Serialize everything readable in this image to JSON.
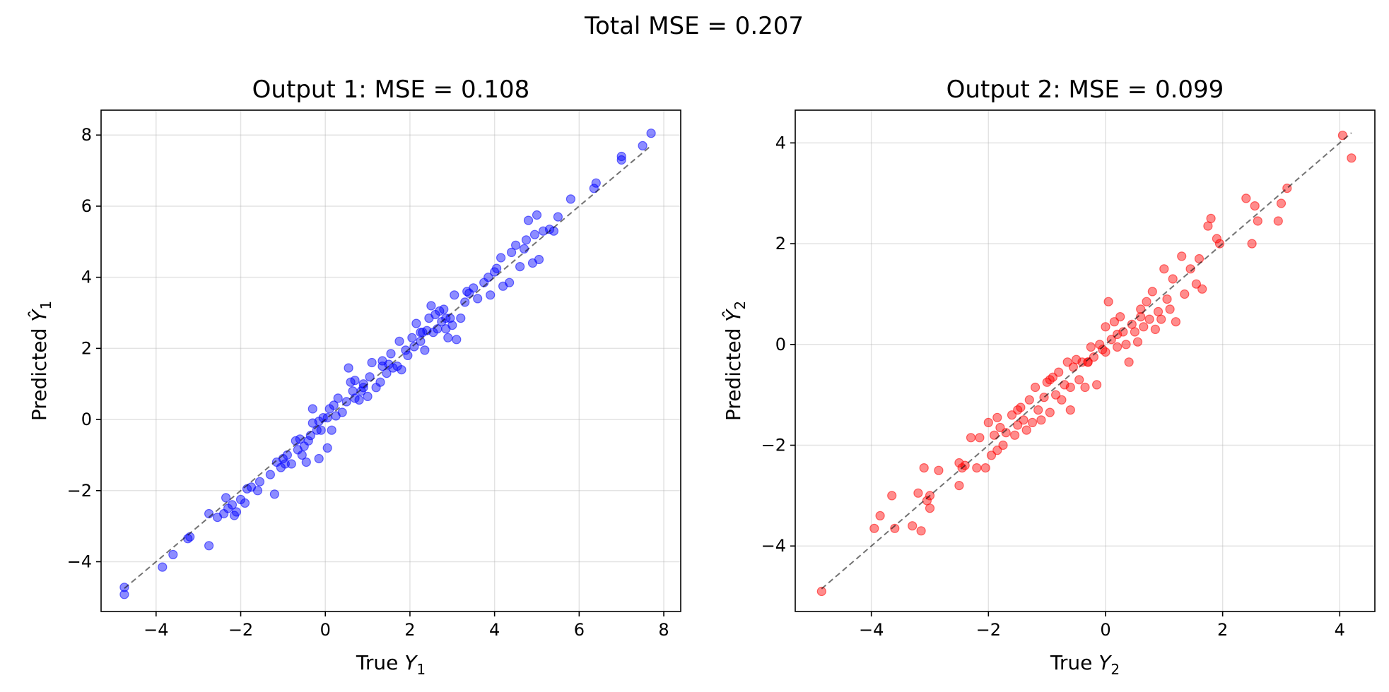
{
  "figure": {
    "suptitle": "Total MSE = 0.207"
  },
  "chart_data": [
    {
      "type": "scatter",
      "title": "Output 1: MSE = 0.108",
      "xlabel": {
        "prefix": "True ",
        "var": "Y",
        "sub": "1"
      },
      "ylabel": {
        "prefix": "Predicted ",
        "var": "Ŷ",
        "sub": "1"
      },
      "xlim": [
        -5.3,
        8.4
      ],
      "ylim": [
        -5.4,
        8.7
      ],
      "xticks": [
        -4,
        -2,
        0,
        2,
        4,
        6,
        8
      ],
      "yticks": [
        -4,
        -2,
        0,
        2,
        4,
        6,
        8
      ],
      "grid": true,
      "color": "#0000ff",
      "reference_line": [
        -4.75,
        7.7
      ],
      "points": [
        [
          -4.75,
          -4.72
        ],
        [
          -4.75,
          -4.92
        ],
        [
          -3.85,
          -4.15
        ],
        [
          -3.6,
          -3.8
        ],
        [
          -3.25,
          -3.35
        ],
        [
          -3.2,
          -3.3
        ],
        [
          -2.75,
          -3.55
        ],
        [
          -2.75,
          -2.65
        ],
        [
          -2.55,
          -2.75
        ],
        [
          -2.4,
          -2.65
        ],
        [
          -2.35,
          -2.2
        ],
        [
          -2.3,
          -2.5
        ],
        [
          -2.2,
          -2.4
        ],
        [
          -2.15,
          -2.7
        ],
        [
          -2.1,
          -2.6
        ],
        [
          -2.0,
          -2.25
        ],
        [
          -1.9,
          -2.35
        ],
        [
          -1.85,
          -1.95
        ],
        [
          -1.75,
          -1.9
        ],
        [
          -1.6,
          -2.0
        ],
        [
          -1.55,
          -1.75
        ],
        [
          -1.3,
          -1.55
        ],
        [
          -1.2,
          -2.1
        ],
        [
          -1.15,
          -1.2
        ],
        [
          -1.05,
          -1.35
        ],
        [
          -1.0,
          -1.1
        ],
        [
          -0.95,
          -1.25
        ],
        [
          -0.9,
          -1.0
        ],
        [
          -0.8,
          -1.25
        ],
        [
          -0.7,
          -0.6
        ],
        [
          -0.65,
          -0.85
        ],
        [
          -0.6,
          -0.55
        ],
        [
          -0.55,
          -1.0
        ],
        [
          -0.5,
          -0.75
        ],
        [
          -0.45,
          -1.2
        ],
        [
          -0.4,
          -0.6
        ],
        [
          -0.35,
          -0.45
        ],
        [
          -0.3,
          -0.1
        ],
        [
          -0.3,
          0.3
        ],
        [
          -0.2,
          -0.3
        ],
        [
          -0.15,
          -0.05
        ],
        [
          -0.1,
          -0.3
        ],
        [
          -0.15,
          -1.1
        ],
        [
          -0.05,
          0.05
        ],
        [
          0.05,
          -0.8
        ],
        [
          0.05,
          0.05
        ],
        [
          0.1,
          0.3
        ],
        [
          0.15,
          -0.3
        ],
        [
          0.2,
          0.4
        ],
        [
          0.25,
          0.1
        ],
        [
          0.3,
          0.6
        ],
        [
          0.4,
          0.2
        ],
        [
          0.5,
          0.5
        ],
        [
          0.55,
          1.45
        ],
        [
          0.6,
          1.05
        ],
        [
          0.65,
          0.8
        ],
        [
          0.7,
          0.6
        ],
        [
          0.7,
          1.1
        ],
        [
          0.8,
          0.55
        ],
        [
          0.85,
          0.8
        ],
        [
          0.9,
          1.0
        ],
        [
          1.0,
          0.65
        ],
        [
          1.05,
          1.2
        ],
        [
          1.1,
          1.6
        ],
        [
          1.2,
          0.9
        ],
        [
          1.3,
          1.05
        ],
        [
          1.35,
          1.65
        ],
        [
          1.45,
          1.3
        ],
        [
          1.5,
          1.55
        ],
        [
          1.55,
          1.85
        ],
        [
          1.6,
          1.45
        ],
        [
          1.7,
          1.5
        ],
        [
          1.75,
          2.2
        ],
        [
          1.8,
          1.4
        ],
        [
          1.9,
          1.95
        ],
        [
          1.95,
          1.8
        ],
        [
          2.05,
          2.3
        ],
        [
          2.1,
          2.05
        ],
        [
          2.15,
          2.7
        ],
        [
          2.25,
          2.2
        ],
        [
          2.3,
          2.45
        ],
        [
          2.35,
          1.95
        ],
        [
          2.4,
          2.5
        ],
        [
          2.45,
          2.85
        ],
        [
          2.5,
          3.2
        ],
        [
          2.55,
          2.45
        ],
        [
          2.6,
          2.95
        ],
        [
          2.65,
          2.55
        ],
        [
          2.7,
          3.05
        ],
        [
          2.75,
          2.75
        ],
        [
          2.8,
          3.1
        ],
        [
          2.85,
          2.55
        ],
        [
          2.9,
          2.3
        ],
        [
          2.95,
          2.85
        ],
        [
          3.0,
          2.65
        ],
        [
          3.05,
          3.5
        ],
        [
          3.1,
          2.25
        ],
        [
          3.2,
          2.85
        ],
        [
          3.3,
          3.3
        ],
        [
          3.4,
          3.55
        ],
        [
          3.5,
          3.7
        ],
        [
          3.6,
          3.4
        ],
        [
          3.75,
          3.85
        ],
        [
          3.85,
          4.0
        ],
        [
          3.9,
          3.5
        ],
        [
          4.0,
          4.15
        ],
        [
          4.05,
          4.25
        ],
        [
          4.15,
          4.55
        ],
        [
          4.2,
          3.75
        ],
        [
          4.35,
          3.85
        ],
        [
          4.4,
          4.7
        ],
        [
          4.5,
          4.9
        ],
        [
          4.6,
          4.3
        ],
        [
          4.7,
          4.8
        ],
        [
          4.75,
          5.05
        ],
        [
          4.8,
          5.6
        ],
        [
          4.9,
          4.4
        ],
        [
          4.95,
          5.2
        ],
        [
          5.0,
          5.75
        ],
        [
          5.05,
          4.5
        ],
        [
          5.15,
          5.3
        ],
        [
          5.3,
          5.35
        ],
        [
          5.4,
          5.3
        ],
        [
          5.5,
          5.7
        ],
        [
          5.8,
          6.2
        ],
        [
          6.35,
          6.5
        ],
        [
          6.4,
          6.65
        ],
        [
          7.0,
          7.3
        ],
        [
          7.0,
          7.4
        ],
        [
          7.5,
          7.7
        ],
        [
          7.7,
          8.05
        ],
        [
          0.9,
          0.9
        ],
        [
          1.35,
          1.5
        ],
        [
          2.25,
          2.45
        ],
        [
          2.85,
          2.85
        ],
        [
          3.35,
          3.6
        ]
      ]
    },
    {
      "type": "scatter",
      "title": "Output 2: MSE = 0.099",
      "xlabel": {
        "prefix": "True ",
        "var": "Y",
        "sub": "2"
      },
      "ylabel": {
        "prefix": "Predicted ",
        "var": "Ŷ",
        "sub": "2"
      },
      "xlim": [
        -5.3,
        4.6
      ],
      "ylim": [
        -5.3,
        4.65
      ],
      "xticks": [
        -4,
        -2,
        0,
        2,
        4
      ],
      "yticks": [
        -4,
        -2,
        0,
        2,
        4
      ],
      "grid": true,
      "color": "#ff0000",
      "reference_line": [
        -4.85,
        4.2
      ],
      "points": [
        [
          -4.85,
          -4.9
        ],
        [
          -3.95,
          -3.65
        ],
        [
          -3.85,
          -3.4
        ],
        [
          -3.65,
          -3.0
        ],
        [
          -3.6,
          -3.65
        ],
        [
          -3.3,
          -3.6
        ],
        [
          -3.2,
          -2.95
        ],
        [
          -3.15,
          -3.7
        ],
        [
          -3.1,
          -2.45
        ],
        [
          -3.05,
          -3.1
        ],
        [
          -3.0,
          -3.25
        ],
        [
          -3.0,
          -3.0
        ],
        [
          -2.85,
          -2.5
        ],
        [
          -2.5,
          -2.8
        ],
        [
          -2.5,
          -2.35
        ],
        [
          -2.45,
          -2.45
        ],
        [
          -2.4,
          -2.4
        ],
        [
          -2.3,
          -1.85
        ],
        [
          -2.2,
          -2.45
        ],
        [
          -2.15,
          -1.85
        ],
        [
          -2.05,
          -2.45
        ],
        [
          -2.0,
          -1.55
        ],
        [
          -1.95,
          -2.2
        ],
        [
          -1.9,
          -1.8
        ],
        [
          -1.85,
          -1.45
        ],
        [
          -1.85,
          -2.1
        ],
        [
          -1.8,
          -1.65
        ],
        [
          -1.75,
          -2.0
        ],
        [
          -1.7,
          -1.75
        ],
        [
          -1.6,
          -1.4
        ],
        [
          -1.55,
          -1.8
        ],
        [
          -1.5,
          -1.6
        ],
        [
          -1.45,
          -1.25
        ],
        [
          -1.4,
          -1.5
        ],
        [
          -1.35,
          -1.7
        ],
        [
          -1.3,
          -1.1
        ],
        [
          -1.25,
          -1.55
        ],
        [
          -1.2,
          -0.85
        ],
        [
          -1.15,
          -1.3
        ],
        [
          -1.1,
          -1.5
        ],
        [
          -1.05,
          -1.05
        ],
        [
          -1.0,
          -0.75
        ],
        [
          -0.95,
          -1.35
        ],
        [
          -0.9,
          -0.65
        ],
        [
          -0.85,
          -1.0
        ],
        [
          -0.8,
          -0.55
        ],
        [
          -0.75,
          -1.1
        ],
        [
          -0.7,
          -0.8
        ],
        [
          -0.65,
          -0.35
        ],
        [
          -0.6,
          -0.85
        ],
        [
          -0.6,
          -1.3
        ],
        [
          -0.55,
          -0.45
        ],
        [
          -0.5,
          -0.3
        ],
        [
          -0.45,
          -0.7
        ],
        [
          -0.4,
          -0.35
        ],
        [
          -0.35,
          -0.85
        ],
        [
          -0.3,
          -0.35
        ],
        [
          -0.25,
          -0.05
        ],
        [
          -0.2,
          -0.25
        ],
        [
          -0.15,
          -0.8
        ],
        [
          -0.1,
          0.0
        ],
        [
          -0.05,
          -0.1
        ],
        [
          0.0,
          0.35
        ],
        [
          0.0,
          -0.15
        ],
        [
          0.05,
          0.85
        ],
        [
          0.1,
          0.1
        ],
        [
          0.15,
          0.45
        ],
        [
          0.2,
          -0.05
        ],
        [
          0.25,
          0.55
        ],
        [
          0.3,
          0.25
        ],
        [
          0.35,
          0.0
        ],
        [
          0.4,
          -0.35
        ],
        [
          0.45,
          0.4
        ],
        [
          0.5,
          0.25
        ],
        [
          0.55,
          0.05
        ],
        [
          0.6,
          0.7
        ],
        [
          0.65,
          0.35
        ],
        [
          0.7,
          0.85
        ],
        [
          0.75,
          0.5
        ],
        [
          0.8,
          1.05
        ],
        [
          0.85,
          0.3
        ],
        [
          0.9,
          0.65
        ],
        [
          0.95,
          0.5
        ],
        [
          1.0,
          1.5
        ],
        [
          1.05,
          0.9
        ],
        [
          1.1,
          0.7
        ],
        [
          1.15,
          1.3
        ],
        [
          1.2,
          0.45
        ],
        [
          1.3,
          1.75
        ],
        [
          1.35,
          1.0
        ],
        [
          1.45,
          1.5
        ],
        [
          1.55,
          1.2
        ],
        [
          1.6,
          1.7
        ],
        [
          1.65,
          1.1
        ],
        [
          1.75,
          2.35
        ],
        [
          1.8,
          2.5
        ],
        [
          1.9,
          2.1
        ],
        [
          1.95,
          2.0
        ],
        [
          2.4,
          2.9
        ],
        [
          2.5,
          2.0
        ],
        [
          2.55,
          2.75
        ],
        [
          2.6,
          2.45
        ],
        [
          2.95,
          2.45
        ],
        [
          3.0,
          2.8
        ],
        [
          3.1,
          3.1
        ],
        [
          4.05,
          4.15
        ],
        [
          4.2,
          3.7
        ],
        [
          -0.95,
          -0.7
        ],
        [
          -0.3,
          -0.35
        ],
        [
          0.2,
          0.2
        ],
        [
          -1.5,
          -1.3
        ],
        [
          0.6,
          0.55
        ]
      ]
    }
  ]
}
